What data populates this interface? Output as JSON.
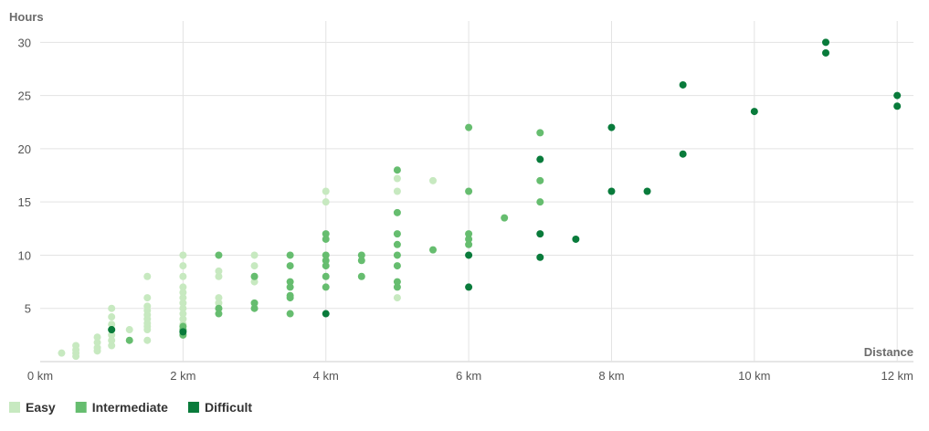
{
  "chart_data": {
    "type": "scatter",
    "xlabel": "Distance",
    "ylabel": "Hours",
    "xlim": [
      0,
      12.1
    ],
    "ylim": [
      0,
      32
    ],
    "x_ticks": [
      0,
      2,
      4,
      6,
      8,
      10,
      12
    ],
    "x_tick_labels": [
      "0 km",
      "2 km",
      "4 km",
      "6 km",
      "8 km",
      "10 km",
      "12 km"
    ],
    "y_ticks": [
      5,
      10,
      15,
      20,
      25,
      30
    ],
    "y_tick_labels": [
      "5",
      "10",
      "15",
      "20",
      "25",
      "30"
    ],
    "grid": true,
    "legend_position": "bottom-left",
    "series": [
      {
        "name": "Easy",
        "color": "#c7e9c0",
        "points": [
          [
            0.3,
            0.8
          ],
          [
            0.5,
            0.5
          ],
          [
            0.5,
            0.8
          ],
          [
            0.5,
            1.1
          ],
          [
            0.5,
            1.5
          ],
          [
            0.8,
            1.0
          ],
          [
            0.8,
            1.3
          ],
          [
            0.8,
            1.8
          ],
          [
            0.8,
            2.3
          ],
          [
            1.0,
            1.5
          ],
          [
            1.0,
            2.0
          ],
          [
            1.0,
            2.5
          ],
          [
            1.0,
            3.0
          ],
          [
            1.0,
            3.5
          ],
          [
            1.0,
            4.2
          ],
          [
            1.0,
            5.0
          ],
          [
            1.25,
            3.0
          ],
          [
            1.5,
            2.0
          ],
          [
            1.5,
            3.0
          ],
          [
            1.5,
            3.3
          ],
          [
            1.5,
            3.6
          ],
          [
            1.5,
            4.0
          ],
          [
            1.5,
            4.4
          ],
          [
            1.5,
            4.8
          ],
          [
            1.5,
            5.2
          ],
          [
            1.5,
            6.0
          ],
          [
            1.5,
            8.0
          ],
          [
            2.0,
            3.0
          ],
          [
            2.0,
            3.5
          ],
          [
            2.0,
            4.0
          ],
          [
            2.0,
            4.5
          ],
          [
            2.0,
            5.0
          ],
          [
            2.0,
            5.5
          ],
          [
            2.0,
            6.0
          ],
          [
            2.0,
            6.5
          ],
          [
            2.0,
            7.0
          ],
          [
            2.0,
            8.0
          ],
          [
            2.0,
            9.0
          ],
          [
            2.0,
            10.0
          ],
          [
            2.5,
            5.0
          ],
          [
            2.5,
            5.5
          ],
          [
            2.5,
            6.0
          ],
          [
            2.5,
            8.0
          ],
          [
            2.5,
            8.5
          ],
          [
            3.0,
            7.5
          ],
          [
            3.0,
            8.0
          ],
          [
            3.0,
            9.0
          ],
          [
            3.0,
            10.0
          ],
          [
            4.0,
            15.0
          ],
          [
            4.0,
            16.0
          ],
          [
            5.0,
            6.0
          ],
          [
            5.0,
            16.0
          ],
          [
            5.0,
            17.2
          ],
          [
            5.5,
            17.0
          ]
        ]
      },
      {
        "name": "Intermediate",
        "color": "#66bd6f",
        "points": [
          [
            1.0,
            3.0
          ],
          [
            1.25,
            2.0
          ],
          [
            2.0,
            2.5
          ],
          [
            2.0,
            3.0
          ],
          [
            2.0,
            3.3
          ],
          [
            2.5,
            4.5
          ],
          [
            2.5,
            5.0
          ],
          [
            2.5,
            10.0
          ],
          [
            3.0,
            5.0
          ],
          [
            3.0,
            5.5
          ],
          [
            3.0,
            8.0
          ],
          [
            3.5,
            4.5
          ],
          [
            3.5,
            6.0
          ],
          [
            3.5,
            6.2
          ],
          [
            3.5,
            7.0
          ],
          [
            3.5,
            7.5
          ],
          [
            3.5,
            9.0
          ],
          [
            3.5,
            10.0
          ],
          [
            4.0,
            7.0
          ],
          [
            4.0,
            8.0
          ],
          [
            4.0,
            9.0
          ],
          [
            4.0,
            9.5
          ],
          [
            4.0,
            10.0
          ],
          [
            4.0,
            11.5
          ],
          [
            4.0,
            12.0
          ],
          [
            4.5,
            8.0
          ],
          [
            4.5,
            9.5
          ],
          [
            4.5,
            10.0
          ],
          [
            5.0,
            7.0
          ],
          [
            5.0,
            7.5
          ],
          [
            5.0,
            9.0
          ],
          [
            5.0,
            10.0
          ],
          [
            5.0,
            11.0
          ],
          [
            5.0,
            12.0
          ],
          [
            5.0,
            14.0
          ],
          [
            5.0,
            18.0
          ],
          [
            5.5,
            10.5
          ],
          [
            6.0,
            11.0
          ],
          [
            6.0,
            11.5
          ],
          [
            6.0,
            12.0
          ],
          [
            6.0,
            16.0
          ],
          [
            6.0,
            22.0
          ],
          [
            6.5,
            13.5
          ],
          [
            7.0,
            15.0
          ],
          [
            7.0,
            17.0
          ],
          [
            7.0,
            21.5
          ]
        ]
      },
      {
        "name": "Difficult",
        "color": "#097b3b",
        "points": [
          [
            1.0,
            3.0
          ],
          [
            2.0,
            2.8
          ],
          [
            4.0,
            4.5
          ],
          [
            6.0,
            7.0
          ],
          [
            6.0,
            10.0
          ],
          [
            7.0,
            9.8
          ],
          [
            7.0,
            12.0
          ],
          [
            7.0,
            19.0
          ],
          [
            7.5,
            11.5
          ],
          [
            8.0,
            16.0
          ],
          [
            8.0,
            22.0
          ],
          [
            8.5,
            16.0
          ],
          [
            9.0,
            19.5
          ],
          [
            9.0,
            26.0
          ],
          [
            10.0,
            23.5
          ],
          [
            11.0,
            29.0
          ],
          [
            11.0,
            30.0
          ],
          [
            12.0,
            24.0
          ],
          [
            12.0,
            25.0
          ]
        ]
      }
    ]
  }
}
